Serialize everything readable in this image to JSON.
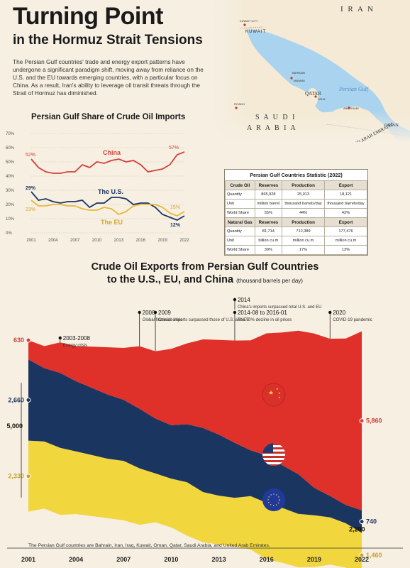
{
  "header": {
    "title": "Turning Point",
    "subtitle": "in the Hormuz Strait Tensions",
    "intro": "The Persian Gulf countries' trade and energy export patterns have undergone a significant paradigm shift, moving away from reliance on the U.S. and the EU towards emerging countries, with a particular focus on China. As a result, Iran's ability to leverage oil transit threats through the Strait of Hormuz has diminished."
  },
  "map": {
    "labels": {
      "iran": "I R A N",
      "kuwait": "KUWAIT",
      "kuwait_city": "KUWAIT CITY",
      "bahrain": "BAHRAIN",
      "manama": "MANAMA",
      "qatar": "QATAR",
      "doha": "DOHA",
      "gulf": "Persian Gulf",
      "riyadh": "RIYADH",
      "saudi1": "S A U D I",
      "saudi2": "A R A B I A",
      "abu_dhabi": "ABU DHABI",
      "uae": "UNITED ARAB EMIRATES",
      "oman": "OMAN"
    },
    "colors": {
      "water": "#a9d3ee",
      "land": "#f4ead5"
    }
  },
  "share_chart": {
    "title": "Persian Gulf Share of Crude Oil Imports",
    "series_labels": {
      "china": "China",
      "us": "The U.S.",
      "eu": "The EU"
    },
    "endpoint_labels": {
      "china_start": "52%",
      "china_end": "57%",
      "us_start": "29%",
      "us_end": "12%",
      "eu_start": "23%",
      "eu_end": "15%"
    },
    "colors": {
      "china": "#d2413a",
      "us": "#1b3561",
      "eu": "#e6b93a"
    }
  },
  "stats_table": {
    "title": "Persian Gulf Countries Statistic (2022)",
    "crude": {
      "headers": [
        "Crude Oil",
        "Reserves",
        "Production",
        "Export"
      ],
      "rows": [
        [
          "Quantity",
          "865,928",
          "25,013",
          "18,121"
        ],
        [
          "Unit",
          "million barrel",
          "thousand barrels/day",
          "thousand barrels/day"
        ],
        [
          "World Share",
          "55%",
          "44%",
          "42%"
        ]
      ]
    },
    "gas": {
      "headers": [
        "Natural Gas",
        "Reserves",
        "Production",
        "Export"
      ],
      "rows": [
        [
          "Quantity",
          "81,714",
          "712,389",
          "177,476"
        ],
        [
          "Unit",
          "billion cu.m",
          "million cu.m",
          "million cu.m"
        ],
        [
          "World Share",
          "39%",
          "17%",
          "13%"
        ]
      ]
    }
  },
  "exports_chart": {
    "title_line1": "Crude Oil Exports from Persian Gulf Countries",
    "title_line2": "to the U.S., EU, and China",
    "title_unit": "(thousand barrels per day)",
    "annotations": [
      {
        "year": "2003-2008",
        "text": "Energy crisis"
      },
      {
        "year": "2008",
        "text": "Global financial crisis"
      },
      {
        "year": "2009",
        "text": "China's imports surpassed those of U.S. and EU"
      },
      {
        "year": "2014",
        "text": "China's imports surpassed total U.S. and EU"
      },
      {
        "year": "2014-08 to 2016-01",
        "text": "The 70% decline in oil prices"
      },
      {
        "year": "2020",
        "text": "COVID-19 pandemic"
      }
    ],
    "side_labels": {
      "left_china": "630",
      "left_us": "2,660",
      "left_eu": "2,330",
      "left_total": "5,000",
      "right_china": "5,860",
      "right_us": "740",
      "right_eu": "1,460",
      "right_total": "2,200"
    },
    "colors": {
      "china": "#e0302a",
      "us": "#1b3561",
      "eu": "#f2d63e"
    },
    "footnote": "The Persian Gulf countries are Bahrain, Iran, Iraq, Kuwait, Oman, Qatar, Saudi Arabia, and United Arab Emirates."
  },
  "chart_data": [
    {
      "type": "line",
      "title": "Persian Gulf Share of Crude Oil Imports",
      "x": [
        2001,
        2002,
        2003,
        2004,
        2005,
        2006,
        2007,
        2008,
        2009,
        2010,
        2011,
        2012,
        2013,
        2014,
        2015,
        2016,
        2017,
        2018,
        2019,
        2020,
        2021,
        2022
      ],
      "xticks": [
        "2001",
        "2004",
        "2007",
        "2010",
        "2013",
        "2016",
        "2019",
        "2022"
      ],
      "yticks": [
        "0%",
        "10%",
        "20%",
        "30%",
        "40%",
        "50%",
        "60%",
        "70%"
      ],
      "ylim": [
        0,
        70
      ],
      "grid": true,
      "series": [
        {
          "name": "China",
          "values": [
            52,
            46,
            43,
            42,
            42,
            43,
            43,
            48,
            46,
            50,
            49,
            51,
            52,
            50,
            51,
            48,
            43,
            44,
            45,
            48,
            55,
            57
          ]
        },
        {
          "name": "The U.S.",
          "values": [
            29,
            23,
            24,
            22,
            21,
            22,
            22,
            23,
            18,
            21,
            21,
            25,
            25,
            24,
            20,
            21,
            21,
            18,
            13,
            11,
            9,
            12
          ]
        },
        {
          "name": "The EU",
          "values": [
            23,
            19,
            19,
            20,
            20,
            19,
            19,
            17,
            16,
            16,
            18,
            17,
            13,
            15,
            19,
            20,
            20,
            20,
            18,
            14,
            12,
            15
          ]
        }
      ]
    },
    {
      "type": "area",
      "title": "Crude Oil Exports from Persian Gulf Countries to the U.S., EU, and China (thousand barrels per day)",
      "x": [
        2001,
        2002,
        2003,
        2004,
        2005,
        2006,
        2007,
        2008,
        2009,
        2010,
        2011,
        2012,
        2013,
        2014,
        2015,
        2016,
        2017,
        2018,
        2019,
        2020,
        2021,
        2022
      ],
      "xticks": [
        "2001",
        "2004",
        "2007",
        "2010",
        "2013",
        "2016",
        "2019",
        "2022"
      ],
      "series": [
        {
          "name": "China",
          "values": [
            630,
            720,
            1000,
            1150,
            1350,
            1550,
            1700,
            2050,
            2200,
            2500,
            2650,
            2900,
            3100,
            3350,
            3600,
            4000,
            4350,
            4700,
            5050,
            5150,
            5450,
            5860
          ]
        },
        {
          "name": "U.S.",
          "values": [
            2660,
            2400,
            2450,
            2300,
            2200,
            2100,
            2000,
            1950,
            1800,
            1750,
            1900,
            2100,
            2000,
            1800,
            1500,
            1550,
            1400,
            1300,
            900,
            700,
            600,
            740
          ]
        },
        {
          "name": "EU",
          "values": [
            2330,
            2200,
            2200,
            2050,
            2000,
            1950,
            1950,
            1850,
            1600,
            1600,
            1750,
            1650,
            1600,
            1600,
            1750,
            1850,
            1800,
            1750,
            1700,
            1550,
            1450,
            1460
          ]
        }
      ]
    }
  ]
}
